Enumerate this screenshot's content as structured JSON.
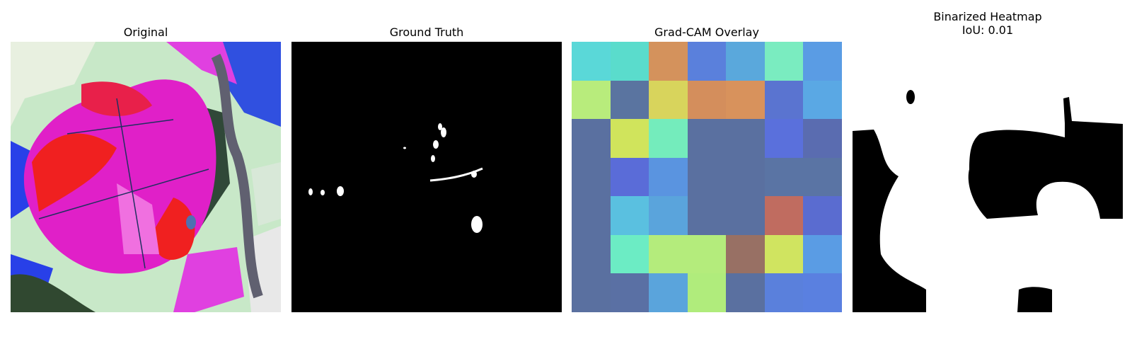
{
  "panels": [
    {
      "title": "Original"
    },
    {
      "title": "Ground Truth"
    },
    {
      "title": "Grad-CAM Overlay"
    },
    {
      "title_lines": [
        "Binarized Heatmap",
        "IoU: 0.01"
      ]
    }
  ],
  "gradcam_grid": [
    [
      "#5ad8d8",
      "#5adccc",
      "#d4925c",
      "#5a80dc",
      "#5aa8dc",
      "#7aecc0",
      "#5a9ce4"
    ],
    [
      "#b8ec7c",
      "#5a74a0",
      "#d8d45c",
      "#d48e5c",
      "#d8925c",
      "#5a74d0",
      "#5aa8e4"
    ],
    [
      "#5a70a0",
      "#d0e45c",
      "#74ecbc",
      "#5a70a0",
      "#5a70a0",
      "#5a70dc",
      "#5a6cb0"
    ],
    [
      "#5a70a0",
      "#5a6cd8",
      "#5a94e0",
      "#5a70a0",
      "#5a70a0",
      "#5a74a4",
      "#5a74a4"
    ],
    [
      "#5a70a0",
      "#5ac0e0",
      "#5aa4dc",
      "#5a70a0",
      "#5a70a0",
      "#c06c60",
      "#5a6cd0"
    ],
    [
      "#5a70a0",
      "#6cecc4",
      "#b4ec7c",
      "#b4ec7c",
      "#987064",
      "#d0e460",
      "#5a9ce4"
    ],
    [
      "#5a70a0",
      "#5a70a4",
      "#5aa4dc",
      "#b0ec7c",
      "#5a70a0",
      "#5a80dc",
      "#5a80e0"
    ]
  ],
  "iou": 0.01
}
